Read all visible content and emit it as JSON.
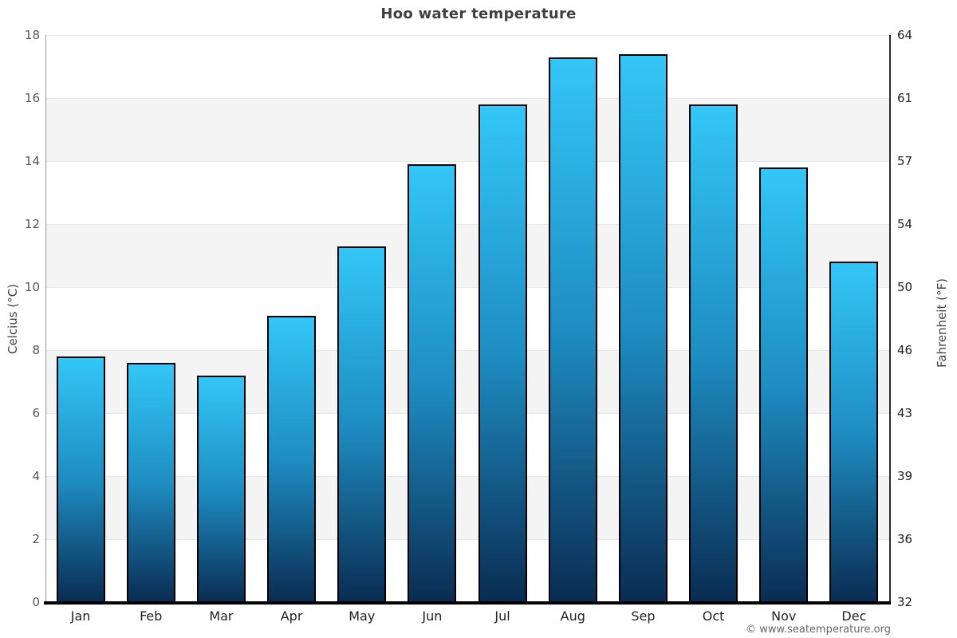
{
  "title": "Hoo water temperature",
  "footer": {
    "credit": "© www.seatemperature.org"
  },
  "colors": {
    "bar_gradient_top": "#33c6f7",
    "bar_gradient_mid": "#1e8dc2",
    "bar_gradient_bottom": "#0a2c52",
    "bar_border": "#000000",
    "band_fill": "#f4f4f4",
    "gridline": "#e8e8e8",
    "axis_left": "#999999",
    "axis_right": "#2a2a2a",
    "axis_bottom": "#000000",
    "title_text": "#3f3f3f",
    "left_tick_text": "#555555",
    "right_tick_text": "#222222",
    "month_label_text": "#222222",
    "footer_text": "#666666"
  },
  "chart_data": {
    "type": "bar",
    "title": "Hoo water temperature",
    "categories": [
      "Jan",
      "Feb",
      "Mar",
      "Apr",
      "May",
      "Jun",
      "Jul",
      "Aug",
      "Sep",
      "Oct",
      "Nov",
      "Dec"
    ],
    "values": [
      7.8,
      7.6,
      7.2,
      9.1,
      11.3,
      13.9,
      15.8,
      17.3,
      17.4,
      15.8,
      13.8,
      10.8
    ],
    "unit": "°C",
    "ylabel_left": "Celcius (°C)",
    "ylabel_right": "Fahrenheit (°F)",
    "ylim": [
      0,
      18
    ],
    "yticks_left": [
      0,
      2,
      4,
      6,
      8,
      10,
      12,
      14,
      16,
      18
    ],
    "yticks_right": [
      32,
      36,
      39,
      43,
      46,
      50,
      54,
      57,
      61,
      64
    ],
    "grid": "alternating horizontal gray bands every 2°C (2-4, 6-8, 10-12, 14-16)",
    "legend": "none",
    "bar_style": "vertical gradient light blue to dark navy, black outline"
  }
}
